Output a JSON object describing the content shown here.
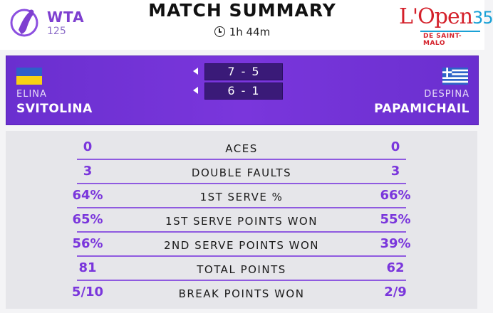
{
  "header": {
    "title": "MATCH SUMMARY",
    "duration": "1h 44m",
    "wta_logo": {
      "text": "WTA",
      "number": "125"
    },
    "event_logo": {
      "main": "L'Open",
      "number": "35",
      "sub": "DE SAINT-MALO"
    }
  },
  "score": {
    "player1": {
      "first_name": "ELINA",
      "last_name": "SVITOLINA",
      "flag": "ukraine-flag"
    },
    "player2": {
      "first_name": "DESPINA",
      "last_name": "PAPAMICHAIL",
      "flag": "greece-flag"
    },
    "sets": [
      {
        "p1": "7",
        "p2": "5"
      },
      {
        "p1": "6",
        "p2": "1"
      }
    ]
  },
  "stats": [
    {
      "label": "ACES",
      "p1": "0",
      "p2": "0"
    },
    {
      "label": "DOUBLE FAULTS",
      "p1": "3",
      "p2": "3"
    },
    {
      "label": "1ST SERVE %",
      "p1": "64%",
      "p2": "66%"
    },
    {
      "label": "1ST SERVE POINTS WON",
      "p1": "65%",
      "p2": "55%"
    },
    {
      "label": "2ND SERVE POINTS WON",
      "p1": "56%",
      "p2": "39%"
    },
    {
      "label": "TOTAL POINTS",
      "p1": "81",
      "p2": "62"
    },
    {
      "label": "BREAK POINTS WON",
      "p1": "5/10",
      "p2": "2/9"
    }
  ],
  "colors": {
    "accent": "#7a36dc",
    "panel": "#6a2fcf",
    "set_box": "#3a1a78"
  }
}
